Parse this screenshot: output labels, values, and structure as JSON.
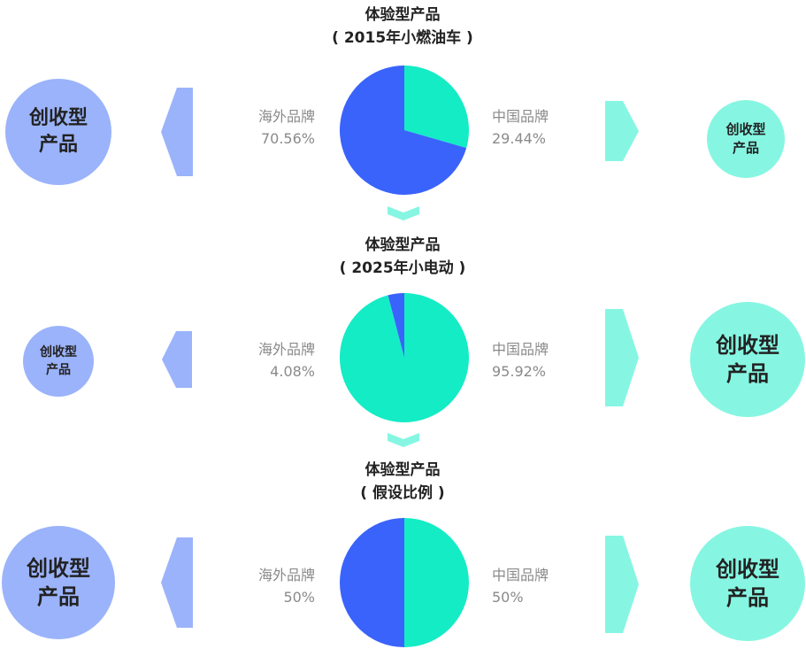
{
  "colors": {
    "overseas": "#3a63fb",
    "china": "#14ecc6",
    "blue_circle": "#9bb3fa",
    "teal_circle": "#86f6e2",
    "arrow_blue": "#9bb3fa",
    "arrow_teal": "#86f6e2"
  },
  "sections": [
    {
      "title_line1": "体验型产品",
      "title_line2": "( 2015年小燃油车 )",
      "left_label": "海外品牌",
      "left_value": "70.56%",
      "right_label": "中国品牌",
      "right_value": "29.44%",
      "left_circle_line1": "创收型",
      "left_circle_line2": "产品",
      "right_circle_line1": "创收型",
      "right_circle_line2": "产品"
    },
    {
      "title_line1": "体验型产品",
      "title_line2": "( 2025年小电动 )",
      "left_label": "海外品牌",
      "left_value": "4.08%",
      "right_label": "中国品牌",
      "right_value": "95.92%",
      "left_circle_line1": "创收型",
      "left_circle_line2": "产品",
      "right_circle_line1": "创收型",
      "right_circle_line2": "产品"
    },
    {
      "title_line1": "体验型产品",
      "title_line2": "( 假设比例 )",
      "left_label": "海外品牌",
      "left_value": "50%",
      "right_label": "中国品牌",
      "right_value": "50%",
      "left_circle_line1": "创收型",
      "left_circle_line2": "产品",
      "right_circle_line1": "创收型",
      "right_circle_line2": "产品"
    }
  ],
  "chart_data": [
    {
      "type": "pie",
      "slices": [
        {
          "name": "海外品牌",
          "value": 70.56
        },
        {
          "name": "中国品牌",
          "value": 29.44
        }
      ]
    },
    {
      "type": "pie",
      "slices": [
        {
          "name": "海外品牌",
          "value": 4.08
        },
        {
          "name": "中国品牌",
          "value": 95.92
        }
      ]
    },
    {
      "type": "pie",
      "slices": [
        {
          "name": "海外品牌",
          "value": 50
        },
        {
          "name": "中国品牌",
          "value": 50
        }
      ]
    }
  ]
}
